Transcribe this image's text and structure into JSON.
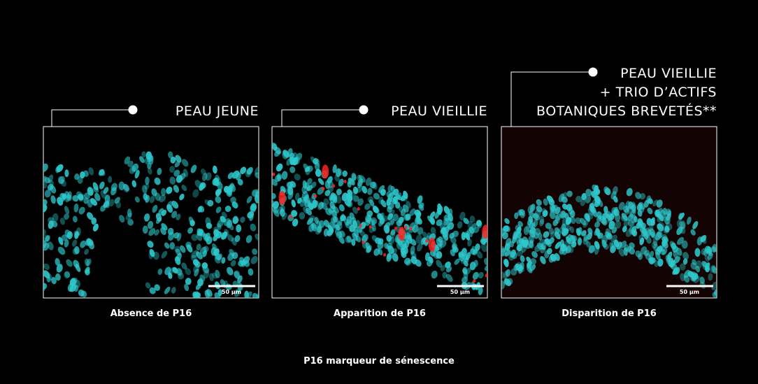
{
  "panels": [
    {
      "heading": [
        "PEAU JEUNE"
      ],
      "scale": "50 µm",
      "caption": "Absence de P16"
    },
    {
      "heading": [
        "PEAU VIEILLIE"
      ],
      "scale": "50 µm",
      "caption": "Apparition de P16"
    },
    {
      "heading": [
        "PEAU VIEILLIE",
        "+ TRIO D’ACTIFS",
        "BOTANIQUES BREVETÉS**"
      ],
      "scale": "50 µm",
      "caption": "Disparition de P16"
    }
  ],
  "footer": "P16 marqueur de sénescence"
}
